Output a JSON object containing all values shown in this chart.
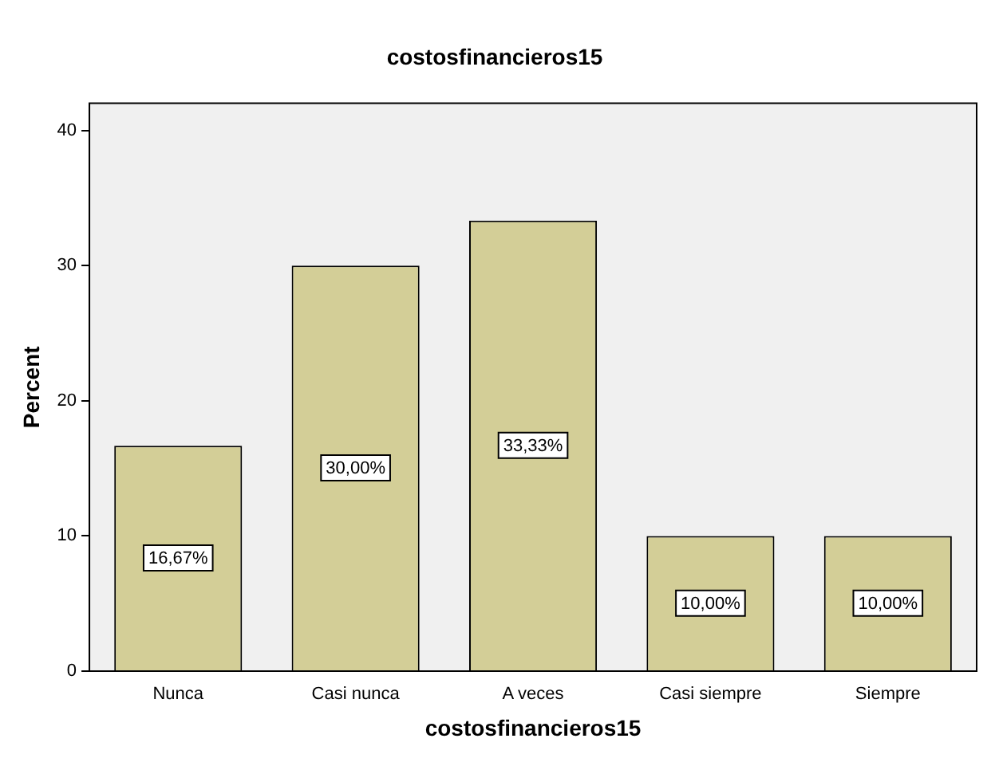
{
  "chart_data": {
    "type": "bar",
    "title": "costosfinancieros15",
    "xlabel": "costosfinancieros15",
    "ylabel": "Percent",
    "categories": [
      "Nunca",
      "Casi nunca",
      "A veces",
      "Casi siempre",
      "Siempre"
    ],
    "values": [
      16.67,
      30,
      33.33,
      10,
      10
    ],
    "color": "#d3ce97",
    "value_labels": [
      "16,67%",
      "30,00%",
      "33,33%",
      "10,00%",
      "10,00%"
    ],
    "ylim": [
      0,
      42
    ],
    "yticks": [
      0,
      10,
      20,
      30,
      40
    ],
    "grid": false,
    "legend": false
  }
}
